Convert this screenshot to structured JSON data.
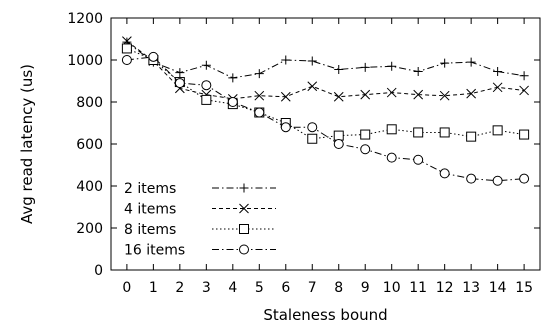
{
  "chart_data": {
    "type": "line",
    "xlabel": "Staleness bound",
    "ylabel": "Avg read latency (us)",
    "xlim": [
      -0.6,
      15.6
    ],
    "ylim": [
      0,
      1200
    ],
    "x_ticks": [
      0,
      1,
      2,
      3,
      4,
      5,
      6,
      7,
      8,
      9,
      10,
      11,
      12,
      13,
      14,
      15
    ],
    "y_ticks": [
      0,
      200,
      400,
      600,
      800,
      1000,
      1200
    ],
    "grid": false,
    "legend_position": "bottom-left",
    "x": [
      0,
      1,
      2,
      3,
      4,
      5,
      6,
      7,
      8,
      9,
      10,
      11,
      12,
      13,
      14,
      15
    ],
    "series": [
      {
        "name": "2 items",
        "marker": "plus",
        "dash": "dash-dot",
        "values": [
          1085,
          990,
          940,
          975,
          915,
          935,
          1000,
          995,
          955,
          965,
          970,
          945,
          985,
          990,
          945,
          925
        ]
      },
      {
        "name": "4 items",
        "marker": "cross",
        "dash": "dashed",
        "values": [
          1090,
          995,
          865,
          835,
          815,
          830,
          825,
          875,
          825,
          835,
          845,
          835,
          830,
          840,
          870,
          855
        ]
      },
      {
        "name": "8 items",
        "marker": "square",
        "dash": "dotted",
        "values": [
          1055,
          1000,
          895,
          810,
          790,
          750,
          700,
          625,
          640,
          645,
          670,
          655,
          655,
          635,
          665,
          645
        ]
      },
      {
        "name": "16 items",
        "marker": "circle",
        "dash": "dash-dot",
        "values": [
          1000,
          1015,
          890,
          880,
          800,
          750,
          680,
          680,
          600,
          575,
          535,
          525,
          460,
          435,
          425,
          435
        ]
      }
    ]
  }
}
